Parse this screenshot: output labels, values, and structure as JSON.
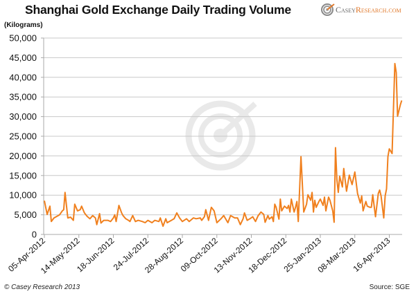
{
  "chart_data": {
    "type": "line",
    "title": "Shanghai Gold Exchange Daily Trading Volume",
    "ylabel": "(Kilograms)",
    "xlabel": "",
    "ylim": [
      0,
      50000
    ],
    "yticks": [
      "0",
      "5,000",
      "10,000",
      "15,000",
      "20,000",
      "25,000",
      "30,000",
      "35,000",
      "40,000",
      "45,000",
      "50,000"
    ],
    "x_unit": "trading day index from 05-Apr-2012",
    "xlim": [
      0,
      259
    ],
    "xticks": [
      {
        "day": 0,
        "label": "05-Apr-2012"
      },
      {
        "day": 25,
        "label": "14-May-2012"
      },
      {
        "day": 50,
        "label": "18-Jun-2012"
      },
      {
        "day": 75,
        "label": "24-Jul-2012"
      },
      {
        "day": 100,
        "label": "28-Aug-2012"
      },
      {
        "day": 125,
        "label": "09-Oct-2012"
      },
      {
        "day": 150,
        "label": "13-Nov-2012"
      },
      {
        "day": 175,
        "label": "18-Dec-2012"
      },
      {
        "day": 200,
        "label": "25-Jan-2013"
      },
      {
        "day": 225,
        "label": "08-Mar-2013"
      },
      {
        "day": 250,
        "label": "16-Apr-2013"
      }
    ],
    "grid": true,
    "series": [
      {
        "name": "Daily Trading Volume",
        "color": "#f0801e",
        "x": [
          0,
          2,
          4,
          5,
          7,
          10,
          11,
          13,
          14,
          15,
          17,
          19,
          21,
          22,
          24,
          26,
          27,
          29,
          31,
          33,
          35,
          37,
          38,
          40,
          41,
          43,
          46,
          48,
          50,
          51,
          52,
          54,
          56,
          57,
          59,
          61,
          62,
          64,
          66,
          68,
          71,
          73,
          75,
          78,
          80,
          83,
          84,
          86,
          88,
          89,
          92,
          94,
          96,
          98,
          100,
          103,
          105,
          108,
          110,
          113,
          114,
          116,
          117,
          119,
          121,
          123,
          125,
          128,
          130,
          133,
          135,
          138,
          140,
          142,
          144,
          145,
          147,
          149,
          151,
          153,
          155,
          157,
          159,
          160,
          162,
          163,
          165,
          166,
          167,
          168,
          170,
          171,
          172,
          174,
          176,
          177,
          178,
          179,
          181,
          182,
          183,
          184,
          186,
          188,
          190,
          191,
          193,
          194,
          195,
          196,
          197,
          199,
          200,
          202,
          203,
          204,
          206,
          207,
          209,
          210,
          211,
          212,
          213,
          214,
          216,
          217,
          219,
          221,
          223,
          225,
          227,
          229,
          230,
          231,
          233,
          234,
          236,
          237,
          238,
          240,
          242,
          243,
          244,
          246,
          247,
          248,
          249,
          250,
          252,
          254,
          255,
          256,
          258,
          259
        ],
        "values": [
          8600,
          5100,
          7200,
          3300,
          4200,
          4800,
          5000,
          6000,
          6300,
          10700,
          4200,
          4400,
          3600,
          7700,
          6000,
          6300,
          7200,
          5500,
          4600,
          4000,
          4800,
          4200,
          2500,
          5300,
          2900,
          3600,
          3600,
          3300,
          4200,
          5000,
          3300,
          7400,
          5500,
          4800,
          4000,
          3600,
          3300,
          4800,
          3300,
          3600,
          3300,
          3000,
          3600,
          3000,
          3600,
          3300,
          4200,
          2100,
          4000,
          3000,
          3600,
          4000,
          5500,
          4200,
          3300,
          4000,
          3300,
          4200,
          4000,
          4200,
          3600,
          4500,
          6300,
          3600,
          6900,
          6000,
          3000,
          4000,
          4800,
          3000,
          4800,
          4200,
          4200,
          2500,
          4000,
          5500,
          3600,
          4000,
          4500,
          3300,
          4800,
          5700,
          5100,
          3100,
          4800,
          3900,
          4500,
          3300,
          7700,
          6900,
          3900,
          9000,
          6000,
          7200,
          6600,
          7400,
          5700,
          9000,
          5700,
          6900,
          8400,
          3300,
          19800,
          5700,
          7700,
          10100,
          8700,
          10700,
          5700,
          8700,
          6900,
          8400,
          9000,
          7400,
          9500,
          6000,
          9500,
          8700,
          6000,
          3100,
          22100,
          13900,
          10700,
          14800,
          12100,
          16800,
          11000,
          15100,
          12700,
          15900,
          10400,
          8000,
          9800,
          6000,
          8400,
          7200,
          6900,
          6900,
          10100,
          4500,
          10400,
          11300,
          9800,
          4200,
          9800,
          11600,
          19800,
          21800,
          20600,
          43500,
          41200,
          30100,
          33000,
          34100
        ]
      }
    ]
  },
  "header": {
    "title": "Shanghai Gold Exchange Daily Trading Volume",
    "unit": "(Kilograms)"
  },
  "logo": {
    "casey": "Casey ",
    "research": "Research.com"
  },
  "footer": {
    "copyright": "© Casey Research 2013",
    "source": "Source: SGE"
  }
}
